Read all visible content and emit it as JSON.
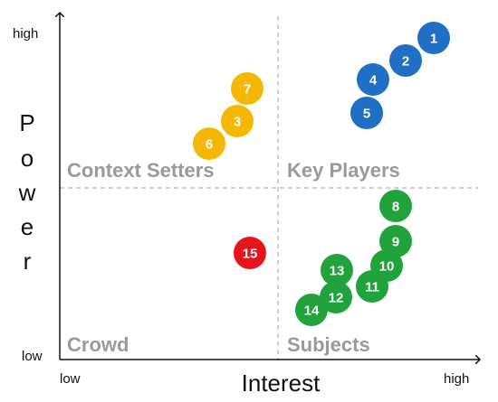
{
  "axes": {
    "x_title": "Interest",
    "x_low": "low",
    "x_high": "high",
    "y_title_letters": [
      "P",
      "o",
      "w",
      "e",
      "r"
    ],
    "y_low": "low",
    "y_high": "high"
  },
  "quadrants": {
    "top_left": "Context Setters",
    "top_right": "Key Players",
    "bottom_left": "Crowd",
    "bottom_right": "Subjects"
  },
  "colors": {
    "key_players": "#1f6fc5",
    "context_setters": "#f5b800",
    "subjects": "#1fa33a",
    "crowd": "#e8141b",
    "quadrant_label": "#9a9a9a",
    "divider": "#b0b0b0"
  },
  "stakeholders": [
    {
      "id": "1",
      "group": "key_players"
    },
    {
      "id": "2",
      "group": "key_players"
    },
    {
      "id": "4",
      "group": "key_players"
    },
    {
      "id": "5",
      "group": "key_players"
    },
    {
      "id": "7",
      "group": "context_setters"
    },
    {
      "id": "3",
      "group": "context_setters"
    },
    {
      "id": "6",
      "group": "context_setters"
    },
    {
      "id": "8",
      "group": "subjects"
    },
    {
      "id": "9",
      "group": "subjects"
    },
    {
      "id": "10",
      "group": "subjects"
    },
    {
      "id": "11",
      "group": "subjects"
    },
    {
      "id": "13",
      "group": "subjects"
    },
    {
      "id": "12",
      "group": "subjects"
    },
    {
      "id": "14",
      "group": "subjects"
    },
    {
      "id": "15",
      "group": "crowd"
    }
  ]
}
